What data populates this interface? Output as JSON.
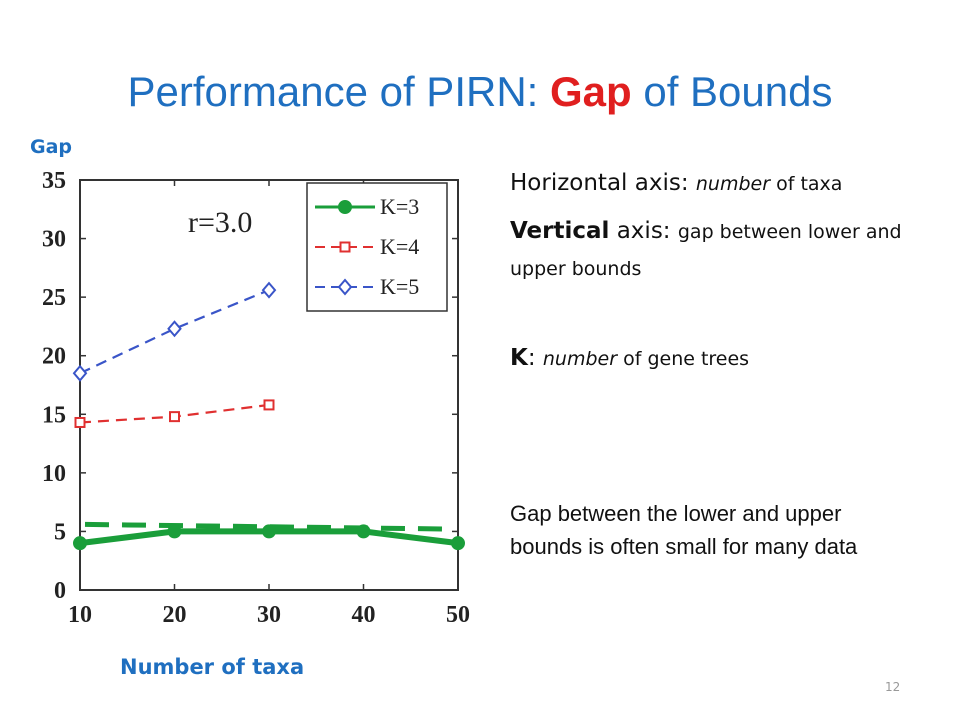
{
  "slide": {
    "title_prefix": "Performance of PIRN: ",
    "title_highlight": "Gap",
    "title_suffix": " of Bounds",
    "y_label": "Gap",
    "x_label": "Number of taxa",
    "note1_a": "Horizontal axis: ",
    "note1_b": "number",
    "note1_c": " of taxa",
    "note2_a": "Vertical",
    "note2_b": " axis: ",
    "note2_c": "gap between lower and upper bounds",
    "note3_a": "K",
    "note3_b": ": ",
    "note3_c": "number",
    "note3_d": " of gene trees",
    "summary": "Gap between the lower and upper bounds is often small for many data",
    "page_number": "12"
  },
  "chart_data": {
    "type": "line",
    "annotation": "r=3.0",
    "xlim": [
      10,
      50
    ],
    "ylim": [
      0,
      35
    ],
    "x_ticks": [
      10,
      20,
      30,
      40,
      50
    ],
    "y_ticks": [
      0,
      5,
      10,
      15,
      20,
      25,
      30,
      35
    ],
    "legend_position": "top-right",
    "series": [
      {
        "name": "K=3",
        "x": [
          10,
          20,
          30,
          40,
          50
        ],
        "values": [
          4,
          5,
          5,
          5,
          4
        ],
        "color": "#1a9e3a",
        "style": "solid",
        "marker": "circle"
      },
      {
        "name": "K=4",
        "x": [
          10,
          20,
          30
        ],
        "values": [
          14.3,
          14.8,
          15.8
        ],
        "color": "#e03030",
        "style": "dashed",
        "marker": "square"
      },
      {
        "name": "K=5",
        "x": [
          10,
          20,
          30
        ],
        "values": [
          18.5,
          22.3,
          25.6
        ],
        "color": "#3a55c8",
        "style": "dashed",
        "marker": "diamond"
      }
    ],
    "overlay_line": {
      "values": [
        5.6,
        5.2
      ],
      "color": "#1a9e3a",
      "style": "dashed"
    }
  }
}
